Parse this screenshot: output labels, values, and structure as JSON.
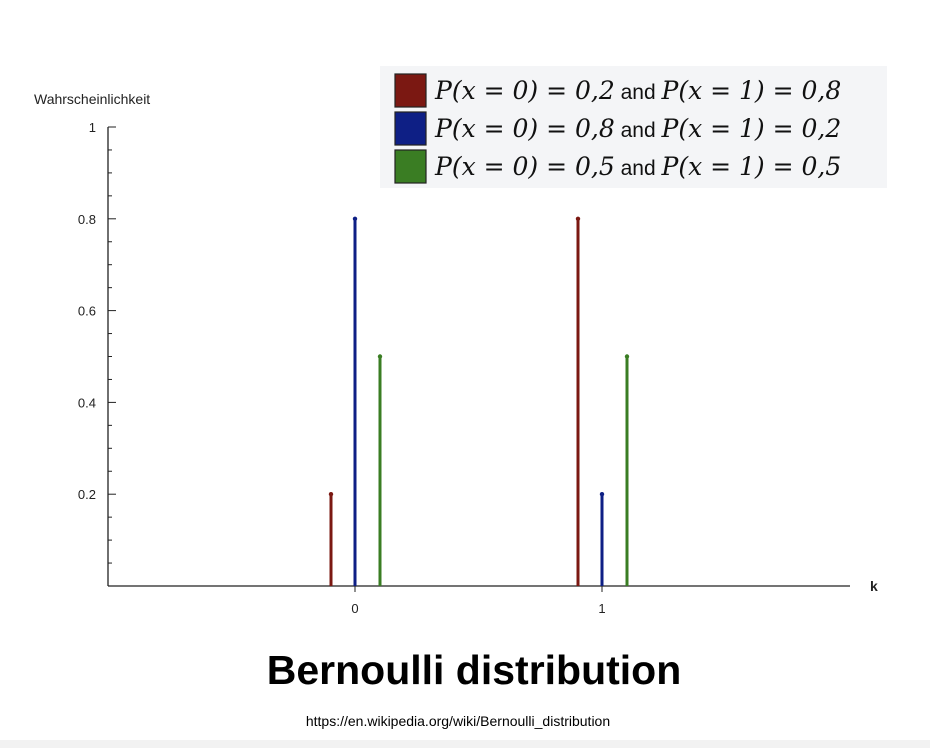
{
  "chart_data": {
    "type": "bar",
    "style": "stem",
    "xlabel": "k",
    "ylabel": "Wahrscheinlichkeit",
    "categories": [
      "0",
      "1"
    ],
    "x_ticks": [
      "0",
      "1"
    ],
    "y_ticks": [
      "0.2",
      "0.4",
      "0.6",
      "0.8",
      "1"
    ],
    "ylim": [
      0,
      1
    ],
    "grid": false,
    "legend_position": "top-right",
    "series": [
      {
        "name": "P(x = 0) = 0,2 and P(x = 1) = 0,8",
        "values": [
          0.2,
          0.8
        ],
        "color": "#7b1812"
      },
      {
        "name": "P(x = 0) = 0,8 and P(x = 1) = 0,2",
        "values": [
          0.8,
          0.2
        ],
        "color": "#0e1f85"
      },
      {
        "name": "P(x = 0) = 0,5 and P(x = 1) = 0,5",
        "values": [
          0.5,
          0.5
        ],
        "color": "#3a7d23"
      }
    ],
    "legend_parts": [
      {
        "lhs": "P(x = 0) = 0,2",
        "and": "and",
        "rhs": "P(x = 1) = 0,8"
      },
      {
        "lhs": "P(x = 0) = 0,8",
        "and": "and",
        "rhs": "P(x = 1) = 0,2"
      },
      {
        "lhs": "P(x = 0) = 0,5",
        "and": "and",
        "rhs": "P(x = 1) = 0,5"
      }
    ]
  },
  "caption": {
    "title": "Bernoulli distribution",
    "source": "https://en.wikipedia.org/wiki/Bernoulli_distribution"
  }
}
